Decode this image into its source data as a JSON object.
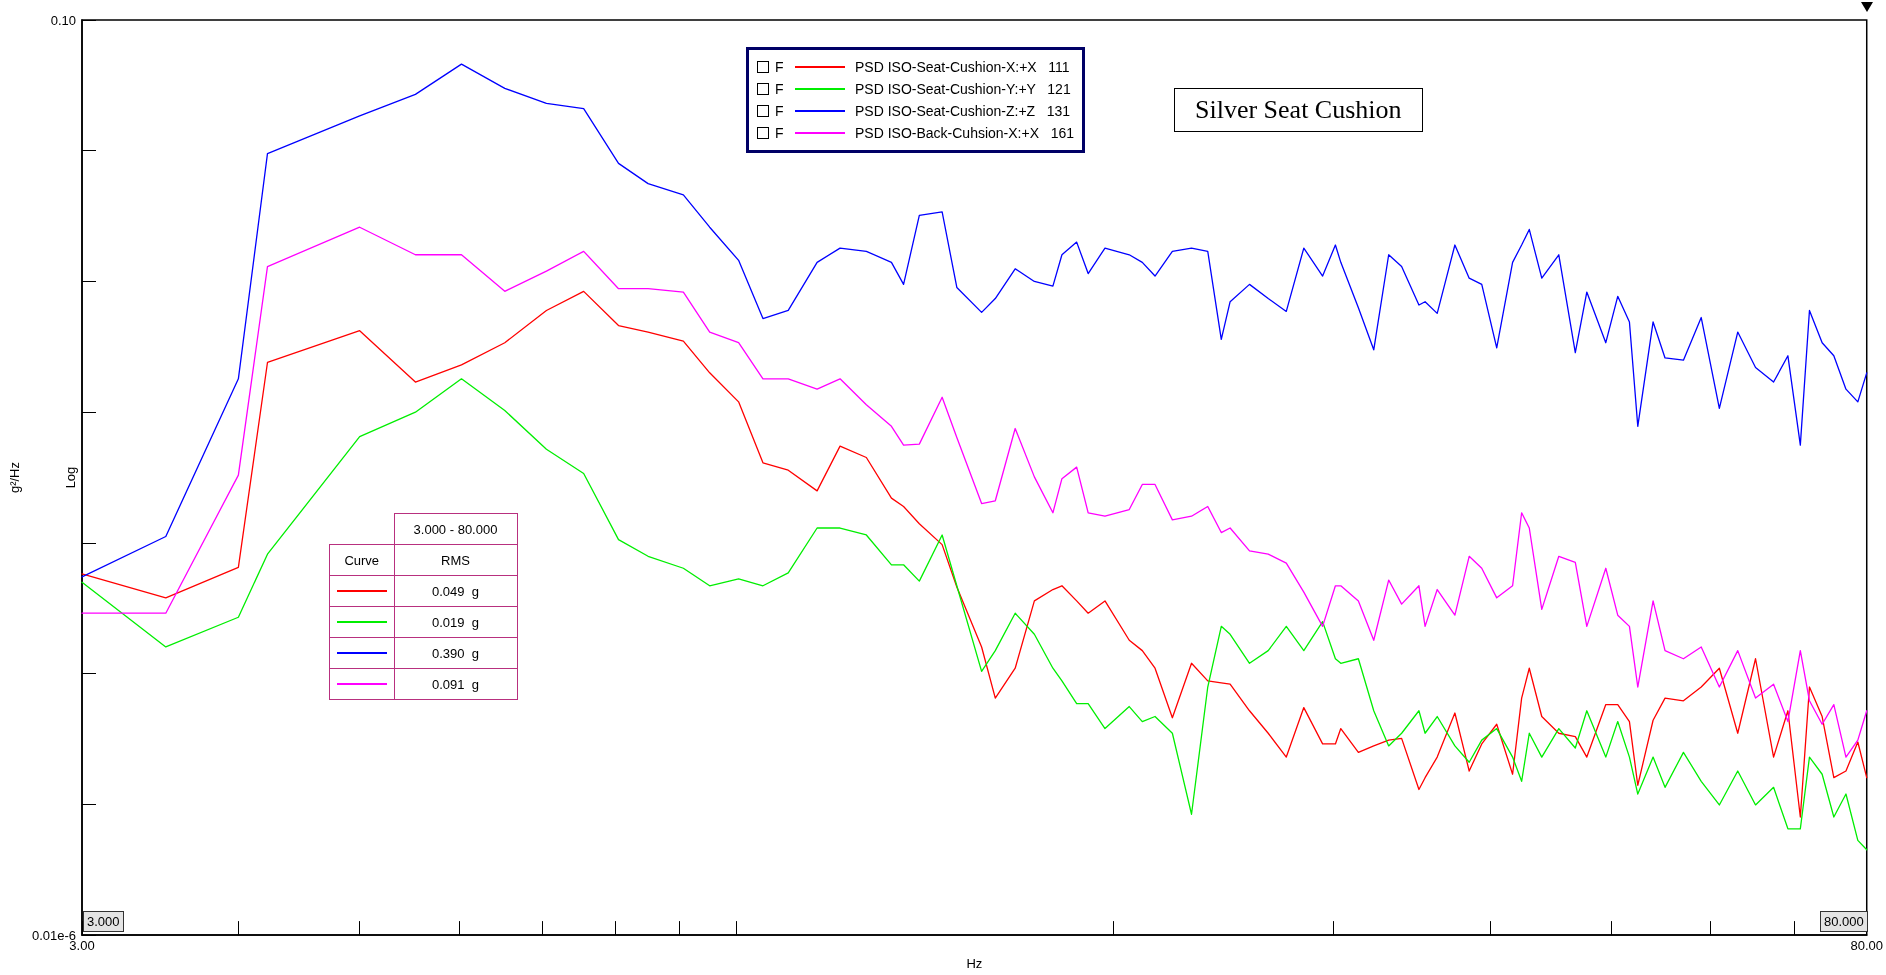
{
  "chart_data": {
    "type": "line",
    "title": "Silver Seat Cushion",
    "xlabel": "Hz",
    "ylabel": "g²/Hz",
    "log": "xy",
    "grid": false,
    "legend": "top",
    "marker": "none",
    "line_style": "solid",
    "xlim": [
      3,
      80
    ],
    "ylim": [
      1e-08,
      0.1
    ],
    "xticks": [
      {
        "value": 3,
        "label": "3.00"
      },
      {
        "value": 4,
        "label": null
      },
      {
        "value": 5,
        "label": null
      },
      {
        "value": 6,
        "label": null
      },
      {
        "value": 7,
        "label": null
      },
      {
        "value": 8,
        "label": null
      },
      {
        "value": 9,
        "label": null
      },
      {
        "value": 10,
        "label": null
      },
      {
        "value": 20,
        "label": null
      },
      {
        "value": 30,
        "label": null
      },
      {
        "value": 40,
        "label": null
      },
      {
        "value": 50,
        "label": null
      },
      {
        "value": 60,
        "label": null
      },
      {
        "value": 70,
        "label": null
      },
      {
        "value": 80,
        "label": "80.00"
      }
    ],
    "yticks": [
      {
        "value": 1e-08,
        "label": "0.01e-6"
      },
      {
        "value": 1e-07,
        "label": null
      },
      {
        "value": 1e-06,
        "label": null
      },
      {
        "value": 1e-05,
        "label": null
      },
      {
        "value": 0.0001,
        "label": null
      },
      {
        "value": 0.001,
        "label": null
      },
      {
        "value": 0.01,
        "label": null
      },
      {
        "value": 0.1,
        "label": "0.10"
      }
    ],
    "x": [
      3.0,
      3.5,
      4.0,
      4.22,
      5.0,
      5.54,
      6.03,
      6.53,
      7.05,
      7.55,
      8.05,
      8.5,
      9.07,
      9.52,
      10.04,
      10.5,
      11.0,
      11.6,
      12.1,
      12.7,
      13.3,
      13.6,
      14.0,
      14.6,
      15.0,
      15.7,
      16.1,
      16.7,
      17.3,
      17.9,
      18.2,
      18.7,
      19.1,
      19.7,
      20.6,
      21.1,
      21.6,
      22.3,
      23.1,
      23.8,
      24.4,
      24.8,
      25.7,
      26.6,
      27.5,
      28.4,
      29.4,
      30.1,
      30.4,
      31.4,
      32.3,
      33.2,
      34.0,
      35.1,
      35.5,
      36.3,
      37.5,
      38.5,
      39.4,
      40.5,
      41.7,
      42.4,
      43.0,
      44.0,
      45.4,
      46.8,
      47.8,
      49.5,
      50.6,
      51.7,
      52.5,
      54.0,
      55.2,
      57.1,
      59.0,
      61.0,
      63.1,
      65.2,
      67.4,
      69.2,
      70.8,
      72.0,
      73.7,
      75.3,
      77.0,
      78.7,
      80.0
    ],
    "series": [
      {
        "name": "PSD ISO-Seat-Cushion-X:+X   111",
        "color": "#ff0000",
        "values": [
          5.8e-06,
          3.8e-06,
          6.5e-06,
          0.00024,
          0.00042,
          0.00017,
          0.00023,
          0.00034,
          0.0006,
          0.00084,
          0.00046,
          0.00041,
          0.00035,
          0.0002,
          0.00012,
          4.1e-05,
          3.6e-05,
          2.5e-05,
          5.5e-05,
          4.5e-05,
          2.2e-05,
          1.9e-05,
          1.4e-05,
          9.7e-06,
          4.6e-06,
          1.6e-06,
          6.5e-07,
          1.1e-06,
          3.6e-06,
          4.4e-06,
          4.7e-06,
          3.6e-06,
          2.9e-06,
          3.6e-06,
          1.8e-06,
          1.5e-06,
          1.1e-06,
          4.6e-07,
          1.2e-06,
          8.8e-07,
          8.5e-07,
          8.3e-07,
          5.2e-07,
          3.5e-07,
          2.3e-07,
          5.5e-07,
          2.9e-07,
          2.9e-07,
          3.8e-07,
          2.5e-07,
          2.8e-07,
          3.1e-07,
          3.2e-07,
          1.3e-07,
          1.6e-07,
          2.3e-07,
          5e-07,
          1.8e-07,
          2.9e-07,
          4.1e-07,
          1.7e-07,
          6.5e-07,
          1.1e-06,
          4.7e-07,
          3.5e-07,
          3.3e-07,
          2.3e-07,
          5.8e-07,
          5.8e-07,
          4.3e-07,
          1.4e-07,
          4.4e-07,
          6.5e-07,
          6.2e-07,
          7.9e-07,
          1.1e-06,
          3.5e-07,
          1.3e-06,
          2.3e-07,
          5.2e-07,
          8e-08,
          7.9e-07,
          4.7e-07,
          1.6e-07,
          1.8e-07,
          3e-07,
          1.6e-07
        ]
      },
      {
        "name": "PSD ISO-Seat-Cushion-Y:+Y   121",
        "color": "#00ee00",
        "values": [
          5e-06,
          1.6e-06,
          2.7e-06,
          8.2e-06,
          6.5e-05,
          0.0001,
          0.00018,
          0.000103,
          5.2e-05,
          3.4e-05,
          1.06e-05,
          7.9e-06,
          6.4e-06,
          4.7e-06,
          5.3e-06,
          4.7e-06,
          5.9e-06,
          1.3e-05,
          1.3e-05,
          1.15e-05,
          6.8e-06,
          6.8e-06,
          5.1e-06,
          1.15e-05,
          4.7e-06,
          1.04e-06,
          1.5e-06,
          2.9e-06,
          2e-06,
          1.1e-06,
          8.8e-07,
          5.9e-07,
          5.9e-07,
          3.8e-07,
          5.6e-07,
          4.3e-07,
          4.7e-07,
          3.5e-07,
          8.4e-08,
          7.9e-07,
          2.3e-06,
          2e-06,
          1.2e-06,
          1.5e-06,
          2.3e-06,
          1.5e-06,
          2.5e-06,
          1.3e-06,
          1.2e-06,
          1.3e-06,
          5.2e-07,
          2.8e-07,
          3.5e-07,
          5.2e-07,
          3.5e-07,
          4.7e-07,
          2.8e-07,
          2.1e-07,
          3.1e-07,
          3.8e-07,
          2.3e-07,
          1.5e-07,
          3.5e-07,
          2.3e-07,
          3.8e-07,
          2.7e-07,
          5.2e-07,
          2.3e-07,
          4.3e-07,
          2.3e-07,
          1.2e-07,
          2.3e-07,
          1.35e-07,
          2.5e-07,
          1.5e-07,
          9.9e-08,
          1.8e-07,
          9.9e-08,
          1.35e-07,
          6.5e-08,
          6.5e-08,
          2.3e-07,
          1.7e-07,
          8e-08,
          1.2e-07,
          5.3e-08,
          4.5e-08
        ]
      },
      {
        "name": "PSD ISO-Seat-Cushion-Z:+Z   131",
        "color": "#0000ff",
        "values": [
          5.5e-06,
          1.12e-05,
          0.00018,
          0.0095,
          0.0185,
          0.027,
          0.046,
          0.03,
          0.023,
          0.021,
          0.008,
          0.0056,
          0.0046,
          0.0026,
          0.00145,
          0.00052,
          0.0006,
          0.0014,
          0.0018,
          0.0017,
          0.0014,
          0.00095,
          0.0032,
          0.0034,
          0.0009,
          0.00058,
          0.00074,
          0.00125,
          0.001,
          0.00092,
          0.0016,
          0.002,
          0.00115,
          0.0018,
          0.0016,
          0.0014,
          0.0011,
          0.0017,
          0.0018,
          0.0017,
          0.00036,
          0.0007,
          0.00095,
          0.00074,
          0.00059,
          0.0018,
          0.0011,
          0.0019,
          0.0014,
          0.00063,
          0.0003,
          0.0016,
          0.0013,
          0.00066,
          0.0007,
          0.00057,
          0.0019,
          0.00106,
          0.00095,
          0.00031,
          0.0014,
          0.0019,
          0.0025,
          0.00106,
          0.0016,
          0.000285,
          0.00083,
          0.00034,
          0.00077,
          0.00049,
          7.8e-05,
          0.00049,
          0.00026,
          0.00025,
          0.00053,
          0.000107,
          0.00041,
          0.00022,
          0.00017,
          0.00027,
          5.6e-05,
          0.0006,
          0.00034,
          0.00027,
          0.00015,
          0.00012,
          0.0002
        ]
      },
      {
        "name": "PSD ISO-Back-Cuhsion-X:+X   161",
        "color": "#ff00ff",
        "values": [
          2.9e-06,
          2.9e-06,
          3.3e-05,
          0.0013,
          0.0026,
          0.0016,
          0.0016,
          0.00084,
          0.0012,
          0.0017,
          0.00088,
          0.00088,
          0.00083,
          0.00041,
          0.00034,
          0.00018,
          0.00018,
          0.00015,
          0.00018,
          0.000114,
          7.8e-05,
          5.6e-05,
          5.7e-05,
          0.00013,
          6.4e-05,
          2e-05,
          2.1e-05,
          7.5e-05,
          3.2e-05,
          1.7e-05,
          3.1e-05,
          3.8e-05,
          1.7e-05,
          1.6e-05,
          1.8e-05,
          2.8e-05,
          2.8e-05,
          1.5e-05,
          1.6e-05,
          1.9e-05,
          1.2e-05,
          1.3e-05,
          8.7e-06,
          8.2e-06,
          7e-06,
          4.2e-06,
          2.3e-06,
          4.7e-06,
          4.7e-06,
          3.6e-06,
          1.8e-06,
          5.2e-06,
          3.4e-06,
          4.7e-06,
          2.3e-06,
          4.4e-06,
          2.8e-06,
          7.9e-06,
          6.4e-06,
          3.8e-06,
          4.7e-06,
          1.7e-05,
          1.3e-05,
          3.1e-06,
          7.9e-06,
          7.1e-06,
          2.3e-06,
          6.4e-06,
          2.8e-06,
          2.3e-06,
          7.9e-07,
          3.6e-06,
          1.5e-06,
          1.3e-06,
          1.6e-06,
          7.9e-07,
          1.5e-06,
          6.5e-07,
          8.3e-07,
          4.3e-07,
          1.5e-06,
          6.2e-07,
          4.1e-07,
          5.8e-07,
          2.3e-07,
          3.1e-07,
          5.2e-07
        ]
      }
    ],
    "annotations": [
      "Log",
      "3.000",
      "80.000",
      "3.000 - 80.000",
      "Curve",
      "RMS",
      "0.049  g",
      "0.019  g",
      "0.390  g",
      "0.091  g",
      "F",
      "F",
      "F",
      "F"
    ]
  }
}
